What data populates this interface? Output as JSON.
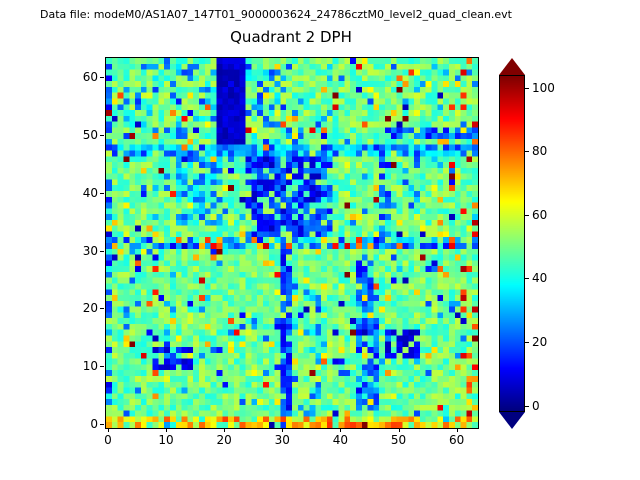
{
  "chart_data": {
    "type": "heatmap",
    "title": "Quadrant 2 DPH",
    "annotation": "Data file: modeM0/AS1A07_147T01_9000003624_24786cztM0_level2_quad_clean.evt",
    "xlabel": "",
    "ylabel": "",
    "grid_size": 64,
    "x_range": [
      -0.5,
      63.5
    ],
    "y_range": [
      -0.5,
      63.5
    ],
    "x_ticks": [
      0,
      10,
      20,
      30,
      40,
      50,
      60
    ],
    "y_ticks": [
      0,
      10,
      20,
      30,
      40,
      50,
      60
    ],
    "colorbar": {
      "colormap": "jet",
      "vmin": -2,
      "vmax": 104,
      "ticks": [
        0,
        20,
        40,
        60,
        80,
        100
      ],
      "extend": "both",
      "under_color": "#000080",
      "over_color": "#800000"
    },
    "generation": {
      "seed": 42,
      "base": {
        "min": 40,
        "max": 58
      },
      "speckles": [
        {
          "p": 0.05,
          "min": 56,
          "max": 72
        },
        {
          "p": 0.03,
          "min": 18,
          "max": 34
        },
        {
          "p": 0.015,
          "min": 72,
          "max": 92
        },
        {
          "p": 0.008,
          "min": 92,
          "max": 112
        },
        {
          "p": 0.02,
          "min": 2,
          "max": 14
        }
      ],
      "regions": [
        {
          "name": "dark-vertical-band-top",
          "x0": 19,
          "x1": 23,
          "y0": 48,
          "y1": 63,
          "min": 2,
          "max": 10,
          "density": 1.0
        },
        {
          "name": "horizontal-stripe-y47",
          "x0": 0,
          "x1": 63,
          "y0": 47,
          "y1": 48,
          "min": 14,
          "max": 40,
          "density": 0.8
        },
        {
          "name": "blue-blob-center",
          "x0": 24,
          "x1": 36,
          "y0": 33,
          "y1": 46,
          "min": 4,
          "max": 26,
          "density": 0.75
        },
        {
          "name": "blue-left-of-blob",
          "x0": 12,
          "x1": 19,
          "y0": 35,
          "y1": 46,
          "min": 18,
          "max": 40,
          "density": 0.5
        },
        {
          "name": "vertical-streak-x37",
          "x0": 37,
          "x1": 38,
          "y0": 33,
          "y1": 46,
          "min": 10,
          "max": 30,
          "density": 0.6
        },
        {
          "name": "vertical-streak-x47",
          "x0": 47,
          "x1": 48,
          "y0": 33,
          "y1": 46,
          "min": 10,
          "max": 30,
          "density": 0.55
        },
        {
          "name": "stripe-y31-blue",
          "x0": 0,
          "x1": 63,
          "y0": 31,
          "y1": 32,
          "min": 10,
          "max": 36,
          "density": 0.5
        },
        {
          "name": "stripe-y31-warm-specks",
          "x0": 0,
          "x1": 63,
          "y0": 31,
          "y1": 32,
          "min": 70,
          "max": 96,
          "density": 0.12
        },
        {
          "name": "vertical-line-x30",
          "x0": 30,
          "x1": 31,
          "y0": 0,
          "y1": 31,
          "min": 8,
          "max": 26,
          "density": 0.85
        },
        {
          "name": "vertical-streaks-x44",
          "x0": 43,
          "x1": 46,
          "y0": 3,
          "y1": 28,
          "min": 10,
          "max": 30,
          "density": 0.6
        },
        {
          "name": "vertical-blue-x35",
          "x0": 35,
          "x1": 36,
          "y0": 0,
          "y1": 22,
          "min": 15,
          "max": 38,
          "density": 0.45
        },
        {
          "name": "dark-patch-left",
          "x0": 8,
          "x1": 14,
          "y0": 10,
          "y1": 14,
          "min": 5,
          "max": 20,
          "density": 0.6
        },
        {
          "name": "dark-patch-right",
          "x0": 48,
          "x1": 53,
          "y0": 12,
          "y1": 16,
          "min": 3,
          "max": 15,
          "density": 0.7
        },
        {
          "name": "right-blue-line-y50",
          "x0": 48,
          "x1": 63,
          "y0": 50,
          "y1": 51,
          "min": 10,
          "max": 30,
          "density": 0.7
        },
        {
          "name": "left-edge-column",
          "x0": 0,
          "x1": 0,
          "y0": 0,
          "y1": 63,
          "min": 5,
          "max": 30,
          "density": 0.5
        },
        {
          "name": "top-left-blue-speckles",
          "x0": 3,
          "x1": 18,
          "y0": 50,
          "y1": 62,
          "min": 15,
          "max": 40,
          "density": 0.25
        },
        {
          "name": "top-mid-blue-speckles",
          "x0": 24,
          "x1": 33,
          "y0": 49,
          "y1": 62,
          "min": 15,
          "max": 40,
          "density": 0.3
        },
        {
          "name": "bottom-rows-warm",
          "x0": 0,
          "x1": 63,
          "y0": 0,
          "y1": 1,
          "min": 56,
          "max": 86,
          "density": 0.7
        },
        {
          "name": "right-edge-warm-specks",
          "x0": 61,
          "x1": 63,
          "y0": 0,
          "y1": 63,
          "min": 70,
          "max": 100,
          "density": 0.15
        }
      ]
    }
  }
}
